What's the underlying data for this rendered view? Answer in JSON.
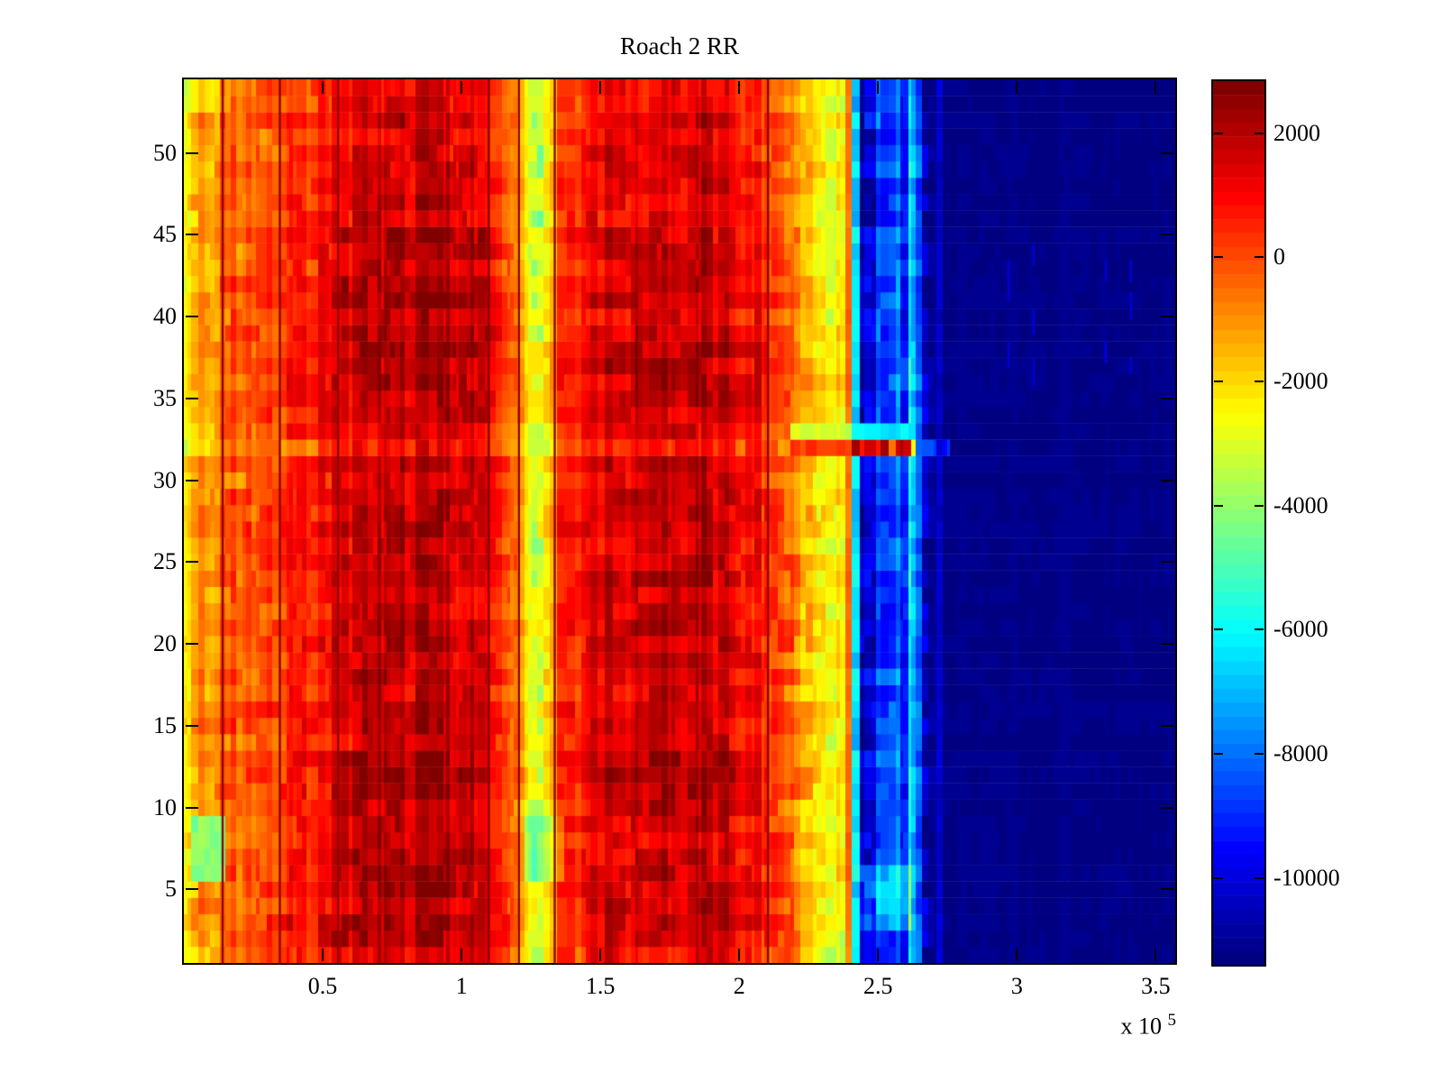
{
  "figure": {
    "background_color": "#ffffff",
    "axis_color": "#000000",
    "text_color": "#000000"
  },
  "chart_data": {
    "type": "heatmap",
    "title": "Roach 2 RR",
    "colormap": "jet",
    "colormap_levels": 64,
    "clim": [
      -11400,
      2840
    ],
    "x_range": [
      0,
      357000
    ],
    "y_range": [
      0.5,
      54.5
    ],
    "n_rows": 54,
    "x_ticks": [
      50000,
      100000,
      150000,
      200000,
      250000,
      300000,
      350000
    ],
    "x_tick_labels": [
      "0.5",
      "1",
      "1.5",
      "2",
      "2.5",
      "3",
      "3.5"
    ],
    "x_exponent_prefix": "x 10",
    "x_exponent_sup": "5",
    "y_ticks": [
      5,
      10,
      15,
      20,
      25,
      30,
      35,
      40,
      45,
      50
    ],
    "y_tick_labels": [
      "5",
      "10",
      "15",
      "20",
      "25",
      "30",
      "35",
      "40",
      "45",
      "50"
    ],
    "colorbar_ticks": [
      {
        "value": 2000,
        "label": "2000"
      },
      {
        "value": 0,
        "label": "0"
      },
      {
        "value": -2000,
        "label": "-2000"
      },
      {
        "value": -4000,
        "label": "-4000"
      },
      {
        "value": -6000,
        "label": "-6000"
      },
      {
        "value": -8000,
        "label": "-8000"
      },
      {
        "value": -10000,
        "label": "-10000"
      }
    ],
    "value_profile": [
      [
        0,
        -2100
      ],
      [
        3000,
        -1800
      ],
      [
        6000,
        -1200
      ],
      [
        12000,
        -800
      ],
      [
        14000,
        -350
      ],
      [
        34000,
        50
      ],
      [
        36000,
        400
      ],
      [
        50000,
        800
      ],
      [
        56000,
        1200
      ],
      [
        62000,
        1650
      ],
      [
        78000,
        1850
      ],
      [
        95000,
        1800
      ],
      [
        104000,
        1550
      ],
      [
        112000,
        1050
      ],
      [
        118000,
        250
      ],
      [
        122000,
        -1500
      ],
      [
        124500,
        -2600
      ],
      [
        130000,
        -2650
      ],
      [
        132500,
        -1500
      ],
      [
        135000,
        200
      ],
      [
        140000,
        850
      ],
      [
        150000,
        1250
      ],
      [
        158000,
        1600
      ],
      [
        186000,
        1800
      ],
      [
        196000,
        1550
      ],
      [
        204000,
        1200
      ],
      [
        211000,
        650
      ],
      [
        218000,
        -250
      ],
      [
        222000,
        -1800
      ],
      [
        228000,
        -2150
      ],
      [
        237500,
        -2450
      ],
      [
        238800,
        -400
      ],
      [
        240300,
        -350
      ],
      [
        241300,
        -5500
      ],
      [
        242800,
        -10300
      ],
      [
        246500,
        -9400
      ],
      [
        249500,
        -7900
      ],
      [
        252500,
        -7100
      ],
      [
        255000,
        -8300
      ],
      [
        257500,
        -9700
      ],
      [
        259500,
        -8200
      ],
      [
        262000,
        -7300
      ],
      [
        264500,
        -8900
      ],
      [
        267000,
        -10500
      ],
      [
        270000,
        -11250
      ],
      [
        357000,
        -11330
      ]
    ],
    "noise_profile": [
      [
        0,
        850
      ],
      [
        118000,
        800
      ],
      [
        123000,
        650
      ],
      [
        133000,
        750
      ],
      [
        215000,
        850
      ],
      [
        222000,
        950
      ],
      [
        238000,
        800
      ],
      [
        239000,
        350
      ],
      [
        240800,
        400
      ],
      [
        241500,
        1500
      ],
      [
        243500,
        1900
      ],
      [
        265000,
        1600
      ],
      [
        268500,
        700
      ],
      [
        271500,
        120
      ],
      [
        357000,
        100
      ]
    ],
    "dark_line_x": [
      13900,
      34500,
      55500,
      109700,
      120600,
      133500,
      210300
    ],
    "dark_line_value": 2600,
    "row_features": [
      {
        "rows": [
          32,
          32
        ],
        "x": [
          0,
          218000
        ],
        "mode": "add",
        "value": -900
      },
      {
        "rows": [
          32,
          32
        ],
        "x": [
          218000,
          241000
        ],
        "mode": "set",
        "value": 300,
        "noise": 900
      },
      {
        "rows": [
          32,
          32
        ],
        "x": [
          241000,
          263000
        ],
        "mode": "mix",
        "values": [
          -2600,
          900,
          2500,
          -600,
          1800
        ]
      },
      {
        "rows": [
          32,
          32
        ],
        "x": [
          263000,
          277000
        ],
        "mode": "set",
        "value": -9000,
        "noise": 1600
      },
      {
        "rows": [
          33,
          33
        ],
        "x": [
          218000,
          241000
        ],
        "mode": "set",
        "value": -3100,
        "noise": 700
      },
      {
        "rows": [
          33,
          33
        ],
        "x": [
          241000,
          263000
        ],
        "mode": "set",
        "value": -6300,
        "noise": 900
      },
      {
        "rows": [
          6,
          9
        ],
        "x": [
          2000,
          14000
        ],
        "mode": "set",
        "value": -4200,
        "noise": 900
      },
      {
        "rows": [
          6,
          9
        ],
        "x": [
          122000,
          136000
        ],
        "mode": "add",
        "value": -1400
      },
      {
        "rows": [
          5,
          13
        ],
        "x": [
          55000,
          105000
        ],
        "mode": "add",
        "value": 420
      },
      {
        "rows": [
          10,
          13
        ],
        "x": [
          148000,
          208000
        ],
        "mode": "add",
        "value": 480
      },
      {
        "rows": [
          38,
          45
        ],
        "x": [
          55000,
          112000
        ],
        "mode": "add",
        "value": 380
      },
      {
        "rows": [
          1,
          3
        ],
        "x": [
          35000,
          120000
        ],
        "mode": "add",
        "value": 380
      },
      {
        "rows": [
          1,
          2
        ],
        "x": [
          222000,
          240000
        ],
        "mode": "add",
        "value": -700
      },
      {
        "rows": [
          1,
          1
        ],
        "x": [
          0,
          215000
        ],
        "mode": "add",
        "value": -550
      },
      {
        "rows": [
          49,
          54
        ],
        "x": [
          0,
          218000
        ],
        "mode": "add",
        "value": -260
      },
      {
        "rows": [
          3,
          6
        ],
        "x": [
          243000,
          262000
        ],
        "mode": "add",
        "value": 1500
      },
      {
        "rows": [
          1,
          54
        ],
        "x": [
          126000,
          130500
        ],
        "mode": "jitter",
        "value": -900,
        "prob": 0.18
      },
      {
        "rows": [
          1,
          54
        ],
        "x": [
          271000,
          272200
        ],
        "mode": "set",
        "value": -10400,
        "noise": 600
      }
    ],
    "sparse_dashes": {
      "rows": [
        37,
        48
      ],
      "x_positions": [
        297000,
        306000,
        332000,
        341000
      ],
      "value": -10350
    },
    "random_seed": 1337
  }
}
